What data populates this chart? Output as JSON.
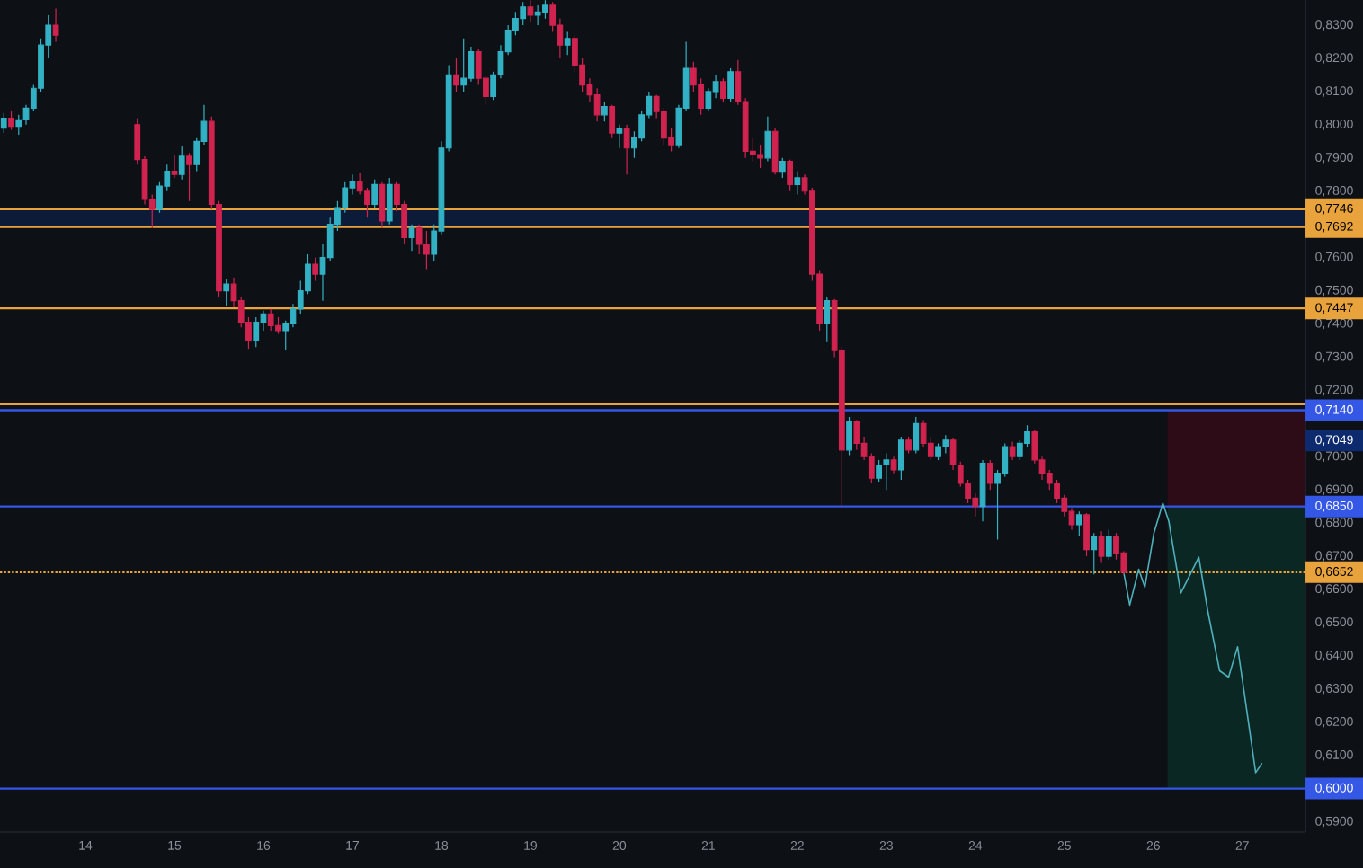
{
  "chart_data": {
    "type": "candlestick",
    "x": [
      13.083,
      13.167,
      13.25,
      13.333,
      13.417,
      13.5,
      13.583,
      13.667,
      14.583,
      14.667,
      14.75,
      14.833,
      14.917,
      15,
      15.083,
      15.167,
      15.25,
      15.333,
      15.417,
      15.5,
      15.583,
      15.667,
      15.75,
      15.833,
      15.917,
      16,
      16.083,
      16.167,
      16.25,
      16.333,
      16.417,
      16.5,
      16.583,
      16.667,
      16.75,
      16.833,
      16.917,
      17,
      17.083,
      17.167,
      17.25,
      17.333,
      17.417,
      17.5,
      17.583,
      17.667,
      17.75,
      17.833,
      17.917,
      18,
      18.083,
      18.167,
      18.25,
      18.333,
      18.417,
      18.5,
      18.583,
      18.667,
      18.75,
      18.833,
      18.917,
      19,
      19.083,
      19.167,
      19.25,
      19.333,
      19.417,
      19.5,
      19.583,
      19.667,
      19.75,
      19.833,
      19.917,
      20,
      20.083,
      20.167,
      20.25,
      20.333,
      20.417,
      20.5,
      20.583,
      20.667,
      20.75,
      20.833,
      20.917,
      21,
      21.083,
      21.167,
      21.25,
      21.333,
      21.417,
      21.5,
      21.583,
      21.667,
      21.75,
      21.833,
      21.917,
      22,
      22.083,
      22.167,
      22.25,
      22.333,
      22.417,
      22.5,
      22.583,
      22.667,
      22.75,
      22.833,
      22.917,
      23,
      23.083,
      23.167,
      23.25,
      23.333,
      23.417,
      23.5,
      23.583,
      23.667,
      23.75,
      23.833,
      23.917,
      24,
      24.083,
      24.167,
      24.25,
      24.333,
      24.417,
      24.5,
      24.583,
      24.667,
      24.75,
      24.833,
      24.917,
      25,
      25.083,
      25.167,
      25.25,
      25.333,
      25.417,
      25.5,
      25.583,
      25.667
    ],
    "ohlc": [
      [
        0.799,
        0.8035,
        0.7975,
        0.802
      ],
      [
        0.802,
        0.804,
        0.7985,
        0.7995
      ],
      [
        0.7995,
        0.803,
        0.797,
        0.8015
      ],
      [
        0.8015,
        0.806,
        0.8,
        0.805
      ],
      [
        0.805,
        0.812,
        0.804,
        0.811
      ],
      [
        0.811,
        0.826,
        0.81,
        0.824
      ],
      [
        0.824,
        0.833,
        0.82,
        0.83
      ],
      [
        0.83,
        0.835,
        0.825,
        0.827
      ],
      [
        0.8,
        0.802,
        0.788,
        0.7895
      ],
      [
        0.7895,
        0.7905,
        0.776,
        0.7775
      ],
      [
        0.7775,
        0.779,
        0.7688,
        0.7745
      ],
      [
        0.7745,
        0.783,
        0.7735,
        0.7815
      ],
      [
        0.7815,
        0.788,
        0.78,
        0.786
      ],
      [
        0.786,
        0.791,
        0.784,
        0.785
      ],
      [
        0.785,
        0.7935,
        0.7835,
        0.7905
      ],
      [
        0.7905,
        0.7915,
        0.777,
        0.788
      ],
      [
        0.788,
        0.796,
        0.786,
        0.795
      ],
      [
        0.795,
        0.806,
        0.794,
        0.801
      ],
      [
        0.801,
        0.8025,
        0.7745,
        0.776
      ],
      [
        0.776,
        0.777,
        0.748,
        0.75
      ],
      [
        0.75,
        0.7535,
        0.7455,
        0.752
      ],
      [
        0.752,
        0.754,
        0.745,
        0.747
      ],
      [
        0.747,
        0.748,
        0.739,
        0.7405
      ],
      [
        0.7405,
        0.742,
        0.7325,
        0.735
      ],
      [
        0.735,
        0.742,
        0.733,
        0.7405
      ],
      [
        0.7405,
        0.744,
        0.738,
        0.743
      ],
      [
        0.743,
        0.7445,
        0.738,
        0.7395
      ],
      [
        0.7395,
        0.742,
        0.737,
        0.738
      ],
      [
        0.738,
        0.741,
        0.732,
        0.74
      ],
      [
        0.74,
        0.746,
        0.739,
        0.7445
      ],
      [
        0.7445,
        0.753,
        0.743,
        0.75
      ],
      [
        0.75,
        0.761,
        0.749,
        0.758
      ],
      [
        0.758,
        0.76,
        0.753,
        0.755
      ],
      [
        0.755,
        0.764,
        0.747,
        0.76
      ],
      [
        0.76,
        0.772,
        0.759,
        0.77
      ],
      [
        0.77,
        0.777,
        0.768,
        0.775
      ],
      [
        0.775,
        0.783,
        0.7735,
        0.781
      ],
      [
        0.781,
        0.785,
        0.779,
        0.783
      ],
      [
        0.783,
        0.7855,
        0.779,
        0.78
      ],
      [
        0.78,
        0.781,
        0.772,
        0.776
      ],
      [
        0.776,
        0.7835,
        0.775,
        0.782
      ],
      [
        0.782,
        0.783,
        0.769,
        0.771
      ],
      [
        0.771,
        0.784,
        0.77,
        0.782
      ],
      [
        0.782,
        0.783,
        0.774,
        0.776
      ],
      [
        0.776,
        0.777,
        0.764,
        0.766
      ],
      [
        0.766,
        0.77,
        0.762,
        0.769
      ],
      [
        0.769,
        0.77,
        0.761,
        0.764
      ],
      [
        0.764,
        0.768,
        0.7565,
        0.761
      ],
      [
        0.761,
        0.77,
        0.759,
        0.768
      ],
      [
        0.768,
        0.795,
        0.767,
        0.793
      ],
      [
        0.793,
        0.818,
        0.792,
        0.815
      ],
      [
        0.815,
        0.82,
        0.81,
        0.812
      ],
      [
        0.812,
        0.826,
        0.81,
        0.814
      ],
      [
        0.814,
        0.8235,
        0.813,
        0.822
      ],
      [
        0.822,
        0.823,
        0.812,
        0.814
      ],
      [
        0.814,
        0.815,
        0.806,
        0.8085
      ],
      [
        0.8085,
        0.816,
        0.8075,
        0.815
      ],
      [
        0.815,
        0.824,
        0.814,
        0.822
      ],
      [
        0.822,
        0.83,
        0.821,
        0.8285
      ],
      [
        0.8285,
        0.834,
        0.827,
        0.832
      ],
      [
        0.832,
        0.837,
        0.83,
        0.8355
      ],
      [
        0.8355,
        0.8375,
        0.831,
        0.833
      ],
      [
        0.833,
        0.836,
        0.83,
        0.834
      ],
      [
        0.834,
        0.8375,
        0.832,
        0.836
      ],
      [
        0.836,
        0.837,
        0.828,
        0.83
      ],
      [
        0.83,
        0.832,
        0.82,
        0.824
      ],
      [
        0.824,
        0.828,
        0.821,
        0.826
      ],
      [
        0.826,
        0.827,
        0.816,
        0.818
      ],
      [
        0.818,
        0.82,
        0.81,
        0.812
      ],
      [
        0.812,
        0.814,
        0.807,
        0.809
      ],
      [
        0.809,
        0.811,
        0.801,
        0.803
      ],
      [
        0.803,
        0.807,
        0.801,
        0.8055
      ],
      [
        0.8055,
        0.806,
        0.796,
        0.7975
      ],
      [
        0.7975,
        0.8,
        0.793,
        0.799
      ],
      [
        0.799,
        0.8,
        0.785,
        0.793
      ],
      [
        0.793,
        0.798,
        0.79,
        0.796
      ],
      [
        0.796,
        0.804,
        0.795,
        0.803
      ],
      [
        0.803,
        0.81,
        0.802,
        0.8085
      ],
      [
        0.8085,
        0.809,
        0.802,
        0.804
      ],
      [
        0.804,
        0.805,
        0.794,
        0.796
      ],
      [
        0.796,
        0.799,
        0.792,
        0.794
      ],
      [
        0.794,
        0.806,
        0.793,
        0.805
      ],
      [
        0.805,
        0.825,
        0.804,
        0.817
      ],
      [
        0.817,
        0.819,
        0.81,
        0.812
      ],
      [
        0.812,
        0.814,
        0.803,
        0.805
      ],
      [
        0.805,
        0.811,
        0.804,
        0.81
      ],
      [
        0.81,
        0.815,
        0.808,
        0.813
      ],
      [
        0.813,
        0.814,
        0.807,
        0.808
      ],
      [
        0.808,
        0.817,
        0.807,
        0.816
      ],
      [
        0.816,
        0.8195,
        0.806,
        0.807
      ],
      [
        0.807,
        0.808,
        0.79,
        0.792
      ],
      [
        0.792,
        0.796,
        0.789,
        0.791
      ],
      [
        0.791,
        0.794,
        0.787,
        0.79
      ],
      [
        0.79,
        0.8025,
        0.789,
        0.798
      ],
      [
        0.798,
        0.799,
        0.785,
        0.786
      ],
      [
        0.786,
        0.79,
        0.784,
        0.789
      ],
      [
        0.789,
        0.7895,
        0.78,
        0.782
      ],
      [
        0.782,
        0.786,
        0.779,
        0.784
      ],
      [
        0.784,
        0.785,
        0.779,
        0.78
      ],
      [
        0.78,
        0.781,
        0.753,
        0.755
      ],
      [
        0.755,
        0.756,
        0.738,
        0.74
      ],
      [
        0.74,
        0.748,
        0.7345,
        0.747
      ],
      [
        0.747,
        0.7475,
        0.73,
        0.732
      ],
      [
        0.732,
        0.733,
        0.685,
        0.702
      ],
      [
        0.702,
        0.712,
        0.7005,
        0.7105
      ],
      [
        0.7105,
        0.711,
        0.702,
        0.704
      ],
      [
        0.704,
        0.706,
        0.699,
        0.7
      ],
      [
        0.7,
        0.701,
        0.692,
        0.6935
      ],
      [
        0.6935,
        0.699,
        0.6925,
        0.6975
      ],
      [
        0.6975,
        0.701,
        0.69,
        0.699
      ],
      [
        0.699,
        0.7,
        0.695,
        0.696
      ],
      [
        0.696,
        0.706,
        0.693,
        0.705
      ],
      [
        0.705,
        0.706,
        0.701,
        0.702
      ],
      [
        0.702,
        0.712,
        0.701,
        0.71
      ],
      [
        0.71,
        0.711,
        0.703,
        0.704
      ],
      [
        0.704,
        0.706,
        0.699,
        0.7
      ],
      [
        0.7,
        0.704,
        0.699,
        0.703
      ],
      [
        0.703,
        0.7065,
        0.701,
        0.705
      ],
      [
        0.705,
        0.7055,
        0.696,
        0.6975
      ],
      [
        0.6975,
        0.6985,
        0.691,
        0.692
      ],
      [
        0.692,
        0.693,
        0.686,
        0.6875
      ],
      [
        0.6875,
        0.689,
        0.682,
        0.685
      ],
      [
        0.685,
        0.699,
        0.6805,
        0.698
      ],
      [
        0.698,
        0.699,
        0.69,
        0.692
      ],
      [
        0.692,
        0.696,
        0.675,
        0.695
      ],
      [
        0.695,
        0.704,
        0.694,
        0.703
      ],
      [
        0.703,
        0.7045,
        0.699,
        0.7
      ],
      [
        0.7,
        0.705,
        0.699,
        0.704
      ],
      [
        0.704,
        0.7095,
        0.703,
        0.7075
      ],
      [
        0.7075,
        0.708,
        0.698,
        0.699
      ],
      [
        0.699,
        0.7,
        0.693,
        0.695
      ],
      [
        0.695,
        0.696,
        0.69,
        0.692
      ],
      [
        0.692,
        0.693,
        0.686,
        0.6875
      ],
      [
        0.6875,
        0.6885,
        0.682,
        0.6835
      ],
      [
        0.6835,
        0.6845,
        0.678,
        0.6795
      ],
      [
        0.6795,
        0.6835,
        0.676,
        0.6825
      ],
      [
        0.6825,
        0.683,
        0.67,
        0.672
      ],
      [
        0.672,
        0.677,
        0.6645,
        0.676
      ],
      [
        0.676,
        0.6775,
        0.668,
        0.67
      ],
      [
        0.67,
        0.678,
        0.669,
        0.676
      ],
      [
        0.676,
        0.677,
        0.669,
        0.671
      ],
      [
        0.671,
        0.6715,
        0.6645,
        0.6652
      ]
    ],
    "colors": [
      "#33b1c4",
      "#d0234f",
      "#33b1c4",
      "#33b1c4",
      "#33b1c4",
      "#33b1c4",
      "#33b1c4",
      "#d0234f",
      "#d0234f",
      "#d0234f",
      "#d0234f",
      "#33b1c4",
      "#33b1c4",
      "#d0234f",
      "#33b1c4",
      "#d0234f",
      "#33b1c4",
      "#33b1c4",
      "#d0234f",
      "#d0234f",
      "#33b1c4",
      "#d0234f",
      "#d0234f",
      "#d0234f",
      "#33b1c4",
      "#33b1c4",
      "#d0234f",
      "#d0234f",
      "#33b1c4",
      "#33b1c4",
      "#33b1c4",
      "#33b1c4",
      "#d0234f",
      "#33b1c4",
      "#33b1c4",
      "#33b1c4",
      "#33b1c4",
      "#33b1c4",
      "#d0234f",
      "#d0234f",
      "#33b1c4",
      "#d0234f",
      "#33b1c4",
      "#d0234f",
      "#d0234f",
      "#33b1c4",
      "#d0234f",
      "#d0234f",
      "#33b1c4",
      "#33b1c4",
      "#33b1c4",
      "#d0234f",
      "#33b1c4",
      "#33b1c4",
      "#d0234f",
      "#d0234f",
      "#33b1c4",
      "#33b1c4",
      "#33b1c4",
      "#33b1c4",
      "#33b1c4",
      "#d0234f",
      "#33b1c4",
      "#33b1c4",
      "#d0234f",
      "#d0234f",
      "#33b1c4",
      "#d0234f",
      "#d0234f",
      "#d0234f",
      "#d0234f",
      "#33b1c4",
      "#d0234f",
      "#33b1c4",
      "#d0234f",
      "#33b1c4",
      "#33b1c4",
      "#33b1c4",
      "#d0234f",
      "#d0234f",
      "#d0234f",
      "#33b1c4",
      "#33b1c4",
      "#d0234f",
      "#d0234f",
      "#33b1c4",
      "#33b1c4",
      "#d0234f",
      "#33b1c4",
      "#d0234f",
      "#d0234f",
      "#d0234f",
      "#d0234f",
      "#33b1c4",
      "#d0234f",
      "#33b1c4",
      "#d0234f",
      "#33b1c4",
      "#d0234f",
      "#d0234f",
      "#d0234f",
      "#33b1c4",
      "#d0234f",
      "#d0234f",
      "#33b1c4",
      "#d0234f",
      "#d0234f",
      "#d0234f",
      "#33b1c4",
      "#33b1c4",
      "#d0234f",
      "#33b1c4",
      "#d0234f",
      "#33b1c4",
      "#d0234f",
      "#d0234f",
      "#33b1c4",
      "#33b1c4",
      "#d0234f",
      "#d0234f",
      "#d0234f",
      "#d0234f",
      "#33b1c4",
      "#d0234f",
      "#33b1c4",
      "#33b1c4",
      "#d0234f",
      "#33b1c4",
      "#33b1c4",
      "#d0234f",
      "#d0234f",
      "#d0234f",
      "#d0234f",
      "#d0234f",
      "#d0234f",
      "#33b1c4",
      "#d0234f",
      "#33b1c4",
      "#d0234f",
      "#33b1c4",
      "#d0234f",
      "#d0234f"
    ],
    "series": [
      {
        "type": "line",
        "color": "#4fb0bc",
        "x": [
          25.667,
          25.735,
          25.836,
          25.905,
          26.006,
          26.107,
          26.174,
          26.309,
          26.41,
          26.511,
          26.612,
          26.745,
          26.846,
          26.947,
          27.083,
          27.15,
          27.218
        ],
        "values": [
          0.6652,
          0.6553,
          0.6661,
          0.6607,
          0.6769,
          0.686,
          0.6806,
          0.6589,
          0.6643,
          0.6697,
          0.6535,
          0.6355,
          0.6336,
          0.6427,
          0.6174,
          0.6048,
          0.6075
        ]
      },
      {
        "type": "bar",
        "color": "#2d0c17",
        "x": [
          26.935
        ],
        "values": [
          0.029
        ],
        "base": [
          0.685
        ]
      },
      {
        "type": "bar",
        "color": "#0b2723",
        "x": [
          26.935
        ],
        "values": [
          0.085
        ],
        "base": [
          0.6
        ]
      }
    ],
    "xlim": [
      13.04,
      27.71
    ],
    "ylim": [
      0.5869,
      0.8376
    ],
    "xticks": [
      14,
      15,
      16,
      17,
      18,
      19,
      20,
      21,
      22,
      23,
      24,
      25,
      26,
      27
    ],
    "yticks": [
      {
        "value": 0.83,
        "label": "0,8300"
      },
      {
        "value": 0.82,
        "label": "0,8200"
      },
      {
        "value": 0.81,
        "label": "0,8100"
      },
      {
        "value": 0.8,
        "label": "0,8000"
      },
      {
        "value": 0.79,
        "label": "0,7900"
      },
      {
        "value": 0.78,
        "label": "0,7800"
      },
      {
        "value": 0.76,
        "label": "0,7600"
      },
      {
        "value": 0.75,
        "label": "0,7500"
      },
      {
        "value": 0.74,
        "label": "0,7400"
      },
      {
        "value": 0.73,
        "label": "0,7300"
      },
      {
        "value": 0.72,
        "label": "0,7200"
      },
      {
        "value": 0.7,
        "label": "0,7000"
      },
      {
        "value": 0.69,
        "label": "0,6900"
      },
      {
        "value": 0.68,
        "label": "0,6800"
      },
      {
        "value": 0.67,
        "label": "0,6700"
      },
      {
        "value": 0.66,
        "label": "0,6600"
      },
      {
        "value": 0.65,
        "label": "0,6500"
      },
      {
        "value": 0.64,
        "label": "0,6400"
      },
      {
        "value": 0.63,
        "label": "0,6300"
      },
      {
        "value": 0.62,
        "label": "0,6200"
      },
      {
        "value": 0.61,
        "label": "0,6100"
      },
      {
        "value": 0.59,
        "label": "0,5900"
      }
    ],
    "bands": [
      {
        "axis": "y",
        "from": 0.7692,
        "to": 0.7746,
        "color": "#0c1c38"
      }
    ],
    "ref_lines": [
      {
        "axis": "y",
        "value": 0.7746,
        "label": "0,7746",
        "color": "#e8a33d"
      },
      {
        "axis": "y",
        "value": 0.7692,
        "label": "0,7692",
        "color": "#e8a33d"
      },
      {
        "axis": "y",
        "value": 0.7447,
        "label": "0,7447",
        "color": "#e8a33d"
      },
      {
        "axis": "y",
        "value": 0.7158,
        "color": "#e8a33d"
      },
      {
        "axis": "y",
        "value": 0.714,
        "label": "0,7140",
        "color": "#3557e6"
      },
      {
        "axis": "y",
        "value": 0.685,
        "label": "0,6850",
        "color": "#3557e6"
      },
      {
        "axis": "y",
        "value": 0.6652,
        "label": "0,6652",
        "color": "#e8a33d",
        "line_style": "dotted"
      },
      {
        "axis": "y",
        "value": 0.6,
        "label": "0,6000",
        "color": "#3557e6"
      }
    ],
    "annotations": [
      {
        "text": "0,7049",
        "x": 27.71,
        "y": 0.7049
      }
    ]
  }
}
